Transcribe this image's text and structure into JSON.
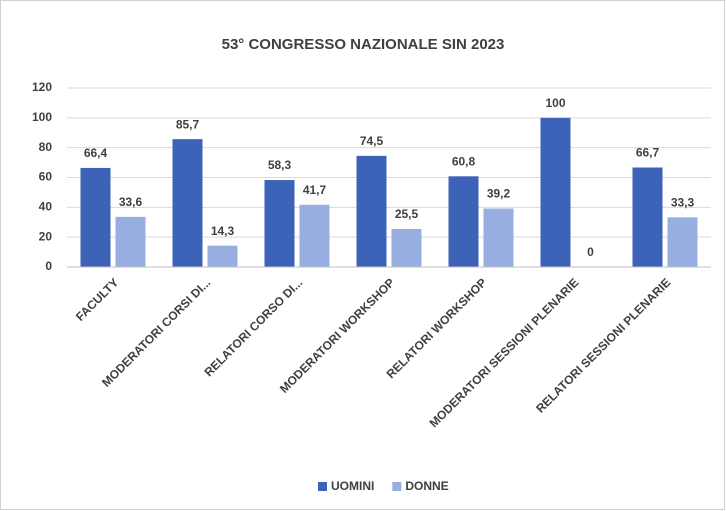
{
  "chart_data": {
    "type": "bar",
    "title": "53° CONGRESSO NAZIONALE SIN 2023",
    "categories": [
      "FACULTY",
      "MODERATORI CORSI DI...",
      "RELATORI CORSO DI...",
      "MODERATORI WORKSHOP",
      "RELATORI WORKSHOP",
      "MODERATORI SESSIONI PLENARIE",
      "RELATORI SESSIONI PLENARIE"
    ],
    "series": [
      {
        "name": "UOMINI",
        "color": "#3d63b8",
        "values": [
          66.4,
          85.7,
          58.3,
          74.5,
          60.8,
          100,
          66.7
        ],
        "value_labels": [
          "66,4",
          "85,7",
          "58,3",
          "74,5",
          "60,8",
          "100",
          "66,7"
        ]
      },
      {
        "name": "DONNE",
        "color": "#98aee0",
        "values": [
          33.6,
          14.3,
          41.7,
          25.5,
          39.2,
          0,
          33.3
        ],
        "value_labels": [
          "33,6",
          "14,3",
          "41,7",
          "25,5",
          "39,2",
          "0",
          "33,3"
        ]
      }
    ],
    "ylim": [
      0,
      120
    ],
    "yticks": [
      0,
      20,
      40,
      60,
      80,
      100,
      120
    ],
    "grid": true,
    "legend": "bottom"
  }
}
